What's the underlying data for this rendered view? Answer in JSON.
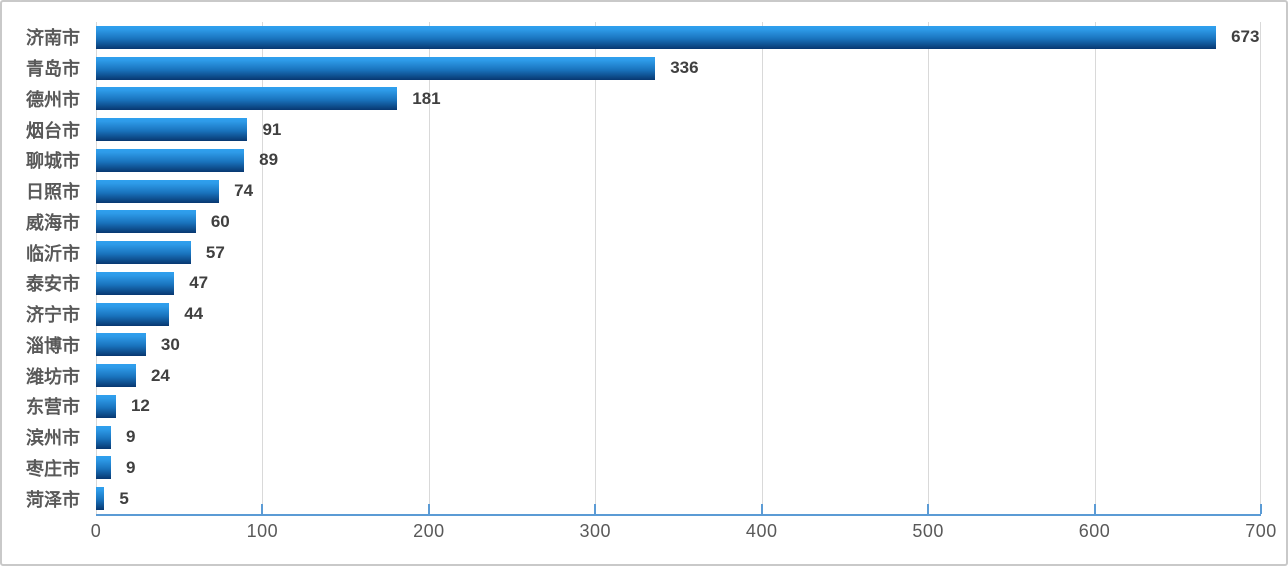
{
  "chart_data": {
    "type": "bar",
    "orientation": "horizontal",
    "title": "",
    "xlabel": "",
    "ylabel": "",
    "categories": [
      "济南市",
      "青岛市",
      "德州市",
      "烟台市",
      "聊城市",
      "日照市",
      "威海市",
      "临沂市",
      "泰安市",
      "济宁市",
      "淄博市",
      "潍坊市",
      "东营市",
      "滨州市",
      "枣庄市",
      "菏泽市"
    ],
    "values": [
      673,
      336,
      181,
      91,
      89,
      74,
      60,
      57,
      47,
      44,
      30,
      24,
      12,
      9,
      9,
      5
    ],
    "xlim": [
      0,
      700
    ],
    "x_ticks": [
      0,
      100,
      200,
      300,
      400,
      500,
      600,
      700
    ],
    "grid": "vertical",
    "data_labels": true,
    "legend": "none"
  },
  "colors": {
    "frame_border": "#c9c9c9",
    "background": "#ffffff",
    "bar_gradient_top": "#2fa0ee",
    "bar_gradient_upper": "#2e9be9",
    "bar_gradient_mid": "#1a74be",
    "bar_gradient_bottom": "#073770",
    "gridline": "#d9d9d9",
    "axis_line": "#5b9bd5",
    "tick_label": "#595959",
    "category_label": "#595959",
    "value_label": "#404040"
  }
}
